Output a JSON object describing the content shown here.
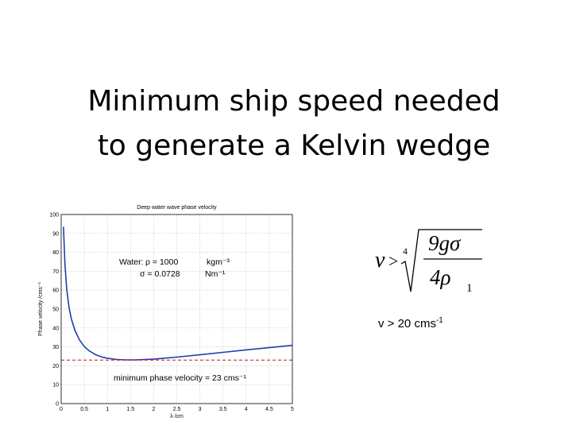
{
  "slide": {
    "title_line1": "Minimum ship speed needed",
    "title_line2": "to generate a Kelvin wedge"
  },
  "formula": {
    "lhs": "v",
    "operator": ">",
    "root_index": "4",
    "numerator": "9gσ",
    "denominator": "4ρ",
    "denominator_subscript": "1"
  },
  "result": {
    "text": "v > 20 cms",
    "exponent": "-1"
  },
  "chart_data": {
    "type": "line",
    "title": "Deep water wave phase velocity",
    "xlabel": "λ /cm",
    "ylabel": "Phase velocity /cms⁻¹",
    "xlim": [
      0,
      5
    ],
    "ylim": [
      0,
      100
    ],
    "grid": true,
    "x_ticks": [
      "0",
      "0.5",
      "1",
      "1.5",
      "2",
      "2.5",
      "3",
      "3.5",
      "4",
      "4.5",
      "5"
    ],
    "y_ticks": [
      "0",
      "10",
      "20",
      "30",
      "40",
      "50",
      "60",
      "70",
      "80",
      "90",
      "100"
    ],
    "series": [
      {
        "color": "#1f3fa8",
        "x": [
          0.05,
          0.08,
          0.12,
          0.17,
          0.22,
          0.3,
          0.4,
          0.5,
          0.6,
          0.75,
          0.9,
          1.0,
          1.2,
          1.4,
          1.6,
          1.7,
          1.8,
          2.0,
          2.2,
          2.5,
          3.0,
          3.5,
          4.0,
          4.5,
          5.0
        ],
        "y": [
          93.5,
          74.0,
          60.4,
          50.8,
          44.8,
          38.5,
          33.5,
          30.2,
          28.0,
          25.8,
          24.5,
          24.0,
          23.3,
          23.1,
          23.1,
          23.2,
          23.3,
          23.5,
          23.9,
          24.6,
          25.8,
          27.1,
          28.4,
          29.6,
          30.8
        ]
      },
      {
        "color": "#cc1111",
        "dashed": true,
        "x": [
          0,
          5
        ],
        "y": [
          23,
          23
        ]
      }
    ],
    "annotations": {
      "water_label": "Water:",
      "rho_value": "ρ = 1000",
      "rho_unit": "kgm⁻³",
      "sigma_value": "σ = 0.0728",
      "sigma_unit": "Nm⁻¹",
      "minimum_label": "minimum phase velocity = 23 cms⁻¹"
    }
  }
}
